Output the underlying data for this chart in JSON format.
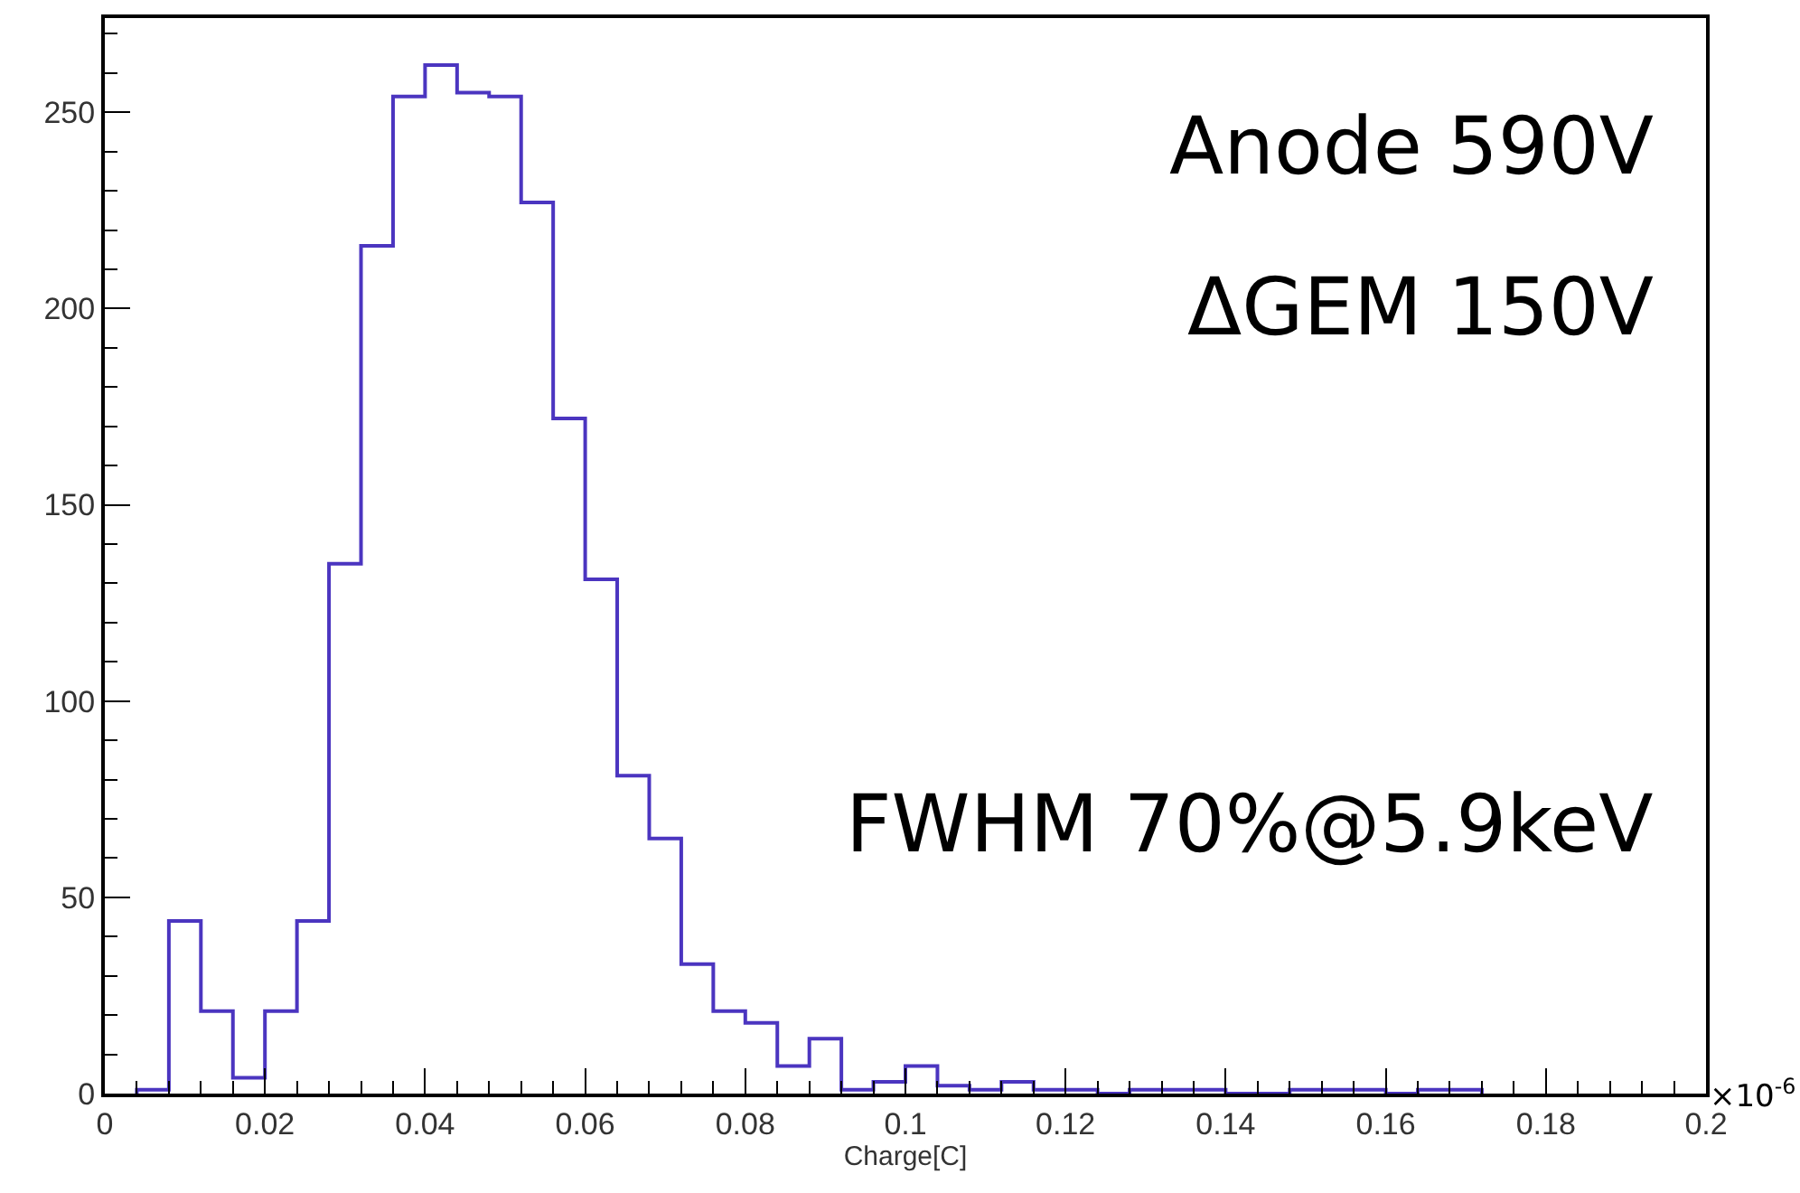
{
  "chart_data": {
    "type": "histogram",
    "xlabel": "Charge[C]",
    "bins": [
      0.004,
      0.008,
      0.012,
      0.016,
      0.02,
      0.024,
      0.028,
      0.032,
      0.036,
      0.04,
      0.044,
      0.048,
      0.052,
      0.056,
      0.06,
      0.064,
      0.068,
      0.072,
      0.076,
      0.08,
      0.084,
      0.088,
      0.092,
      0.096,
      0.1,
      0.104,
      0.108,
      0.112,
      0.116,
      0.12,
      0.124,
      0.128,
      0.132,
      0.136,
      0.14,
      0.144,
      0.148,
      0.152,
      0.156,
      0.16,
      0.164,
      0.168,
      0.172
    ],
    "values": [
      1,
      44,
      21,
      4,
      21,
      44,
      135,
      216,
      254,
      262,
      255,
      254,
      227,
      172,
      131,
      81,
      65,
      33,
      21,
      18,
      7,
      14,
      1,
      3,
      7,
      2,
      1,
      3,
      1,
      1,
      0,
      1,
      1,
      1,
      0,
      0,
      1,
      1,
      1,
      0,
      1,
      1
    ],
    "color": "#4b35c0",
    "xlim": [
      0,
      0.2
    ],
    "xticks": [
      0,
      0.02,
      0.04,
      0.06,
      0.08,
      0.1,
      0.12,
      0.14,
      0.16,
      0.18,
      0.2
    ],
    "ylim": [
      0,
      274
    ],
    "yticks": [
      0,
      50,
      100,
      150,
      200,
      250
    ],
    "annotations": [
      "Anode 590V",
      "ΔGEM 150V",
      "FWHM 70%@5.9keV",
      "×10$^{-6}$"
    ]
  }
}
